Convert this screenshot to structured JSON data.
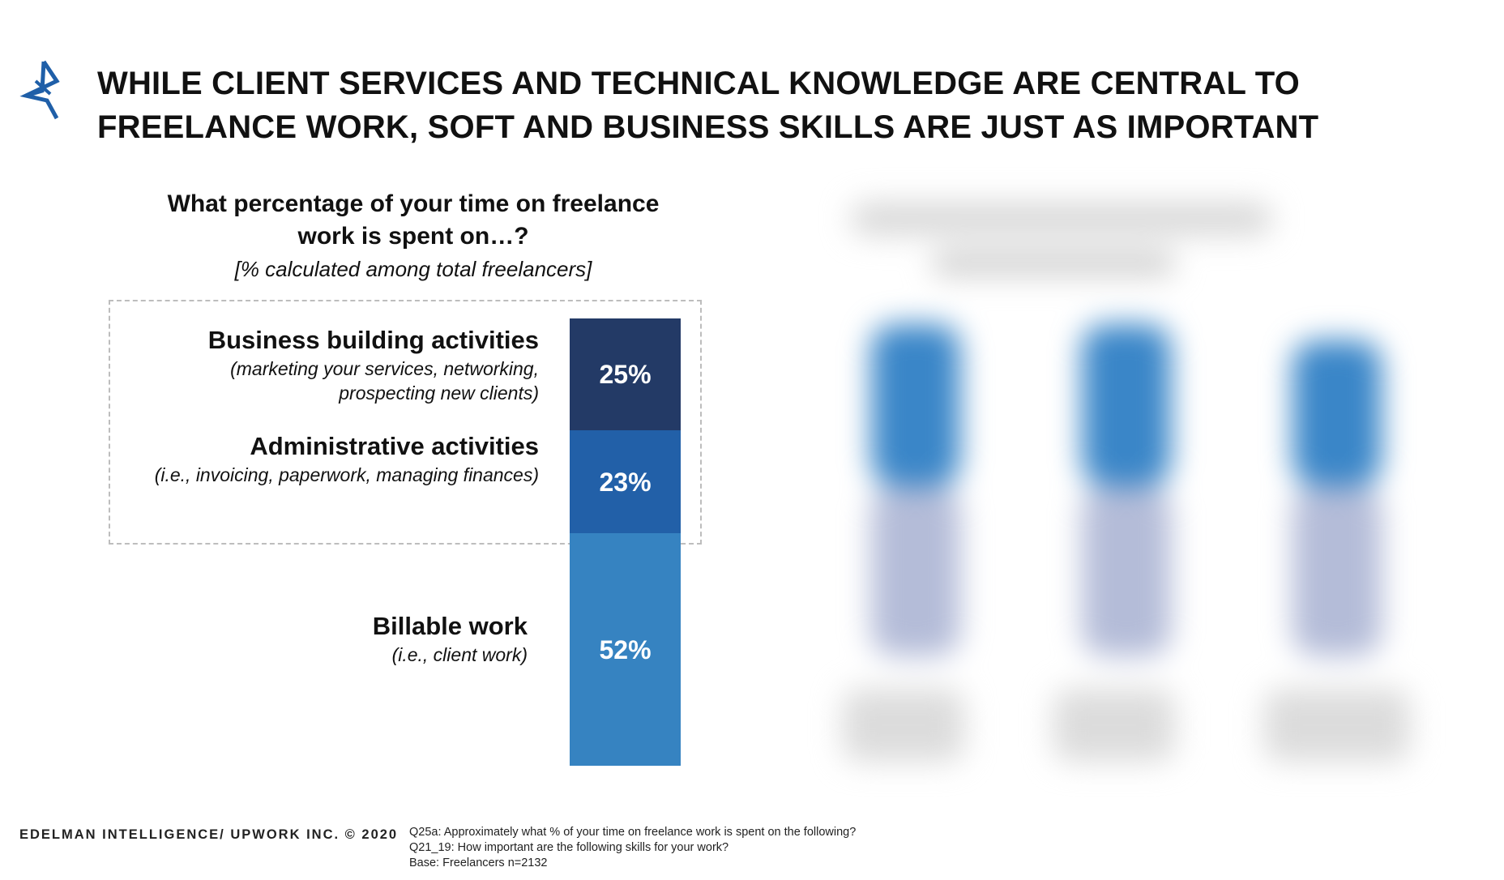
{
  "headline": {
    "line1": "WHILE CLIENT SERVICES AND TECHNICAL KNOWLEDGE ARE CENTRAL TO",
    "line2": "FREELANCE WORK, SOFT AND BUSINESS SKILLS ARE JUST AS IMPORTANT"
  },
  "colors": {
    "dark": "#233a66",
    "mid": "#2260a8",
    "light": "#3683c1",
    "logo": "#1f5fa8"
  },
  "chart_data": {
    "type": "bar",
    "stacked": true,
    "title": "What percentage of your time on freelance work is spent on…?",
    "title_line1": "What percentage of your time on freelance",
    "title_line2": "work is spent on…?",
    "subtitle": "[% calculated among total freelancers]",
    "unit": "%",
    "segments": [
      {
        "name": "Business building activities",
        "description_line1": "(marketing your services, networking,",
        "description_line2": "prospecting new clients)",
        "value": 25,
        "label": "25%",
        "color": "#233a66"
      },
      {
        "name": "Administrative activities",
        "description_line1": "(i.e., invoicing, paperwork, managing finances)",
        "value": 23,
        "label": "23%",
        "color": "#2260a8"
      },
      {
        "name": "Billable work",
        "description_line1": "(i.e., client work)",
        "value": 52,
        "label": "52%",
        "color": "#3683c1"
      }
    ]
  },
  "footer": {
    "brand": "EDELMAN INTELLIGENCE/ UPWORK INC. © 2020",
    "note1": "Q25a: Approximately what % of your time on freelance work is spent on the following?",
    "note2": "Q21_19: How important are the following skills for your work?",
    "note3": "Base: Freelancers n=2132"
  }
}
